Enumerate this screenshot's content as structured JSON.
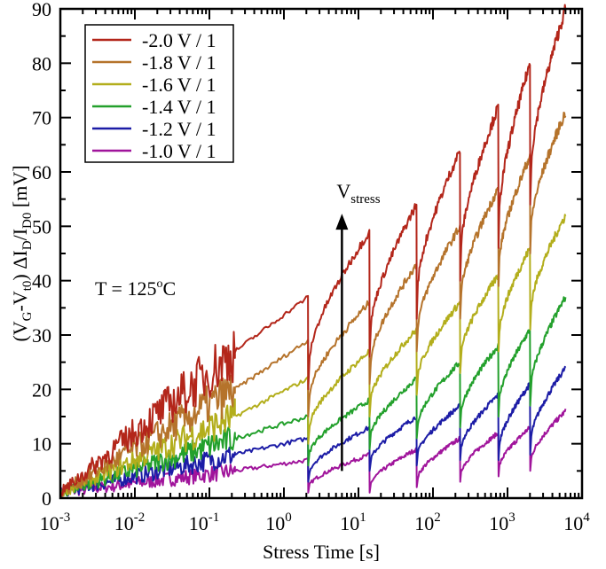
{
  "chart_data": {
    "type": "line",
    "title": "",
    "xlabel": "Stress Time [s]",
    "ylabel_parts": [
      "(V",
      "G",
      "-V",
      "t0",
      ") ΔI",
      "D",
      "/I",
      "D0",
      " [mV]"
    ],
    "xscale": "log",
    "xlim": [
      0.001,
      10000
    ],
    "ylim": [
      0,
      90
    ],
    "x_ticks": [
      {
        "base": "10",
        "exp": "-3"
      },
      {
        "base": "10",
        "exp": "-2"
      },
      {
        "base": "10",
        "exp": "-1"
      },
      {
        "base": "10",
        "exp": "0"
      },
      {
        "base": "10",
        "exp": "1"
      },
      {
        "base": "10",
        "exp": "2"
      },
      {
        "base": "10",
        "exp": "3"
      },
      {
        "base": "10",
        "exp": "4"
      }
    ],
    "y_ticks": [
      "0",
      "10",
      "20",
      "30",
      "40",
      "50",
      "60",
      "70",
      "80",
      "90"
    ],
    "legend_position": "top-left",
    "annotations": {
      "temperature": {
        "prefix": "T = 125",
        "sup": "o",
        "suffix": "C"
      },
      "arrow": {
        "main": "V",
        "sub": "stress",
        "x": 6,
        "y_from": 5,
        "y_to": 52
      }
    },
    "breakpoints_s": [
      2.1,
      14,
      60,
      230,
      750,
      2000,
      6000
    ],
    "series": [
      {
        "name": "-2.0 V / 1",
        "color": "#b3261a",
        "early": [
          1,
          27
        ],
        "mid_end": 37,
        "ends": [
          49,
          54,
          64,
          72,
          80,
          90
        ],
        "drops": [
          20,
          26,
          33,
          40,
          46,
          54
        ]
      },
      {
        "name": "-1.8 V / 1",
        "color": "#b5732b",
        "early": [
          1,
          20
        ],
        "mid_end": 29,
        "ends": [
          36,
          43,
          50,
          57,
          63,
          71
        ],
        "drops": [
          15,
          21,
          27,
          33,
          39,
          45
        ]
      },
      {
        "name": "-1.6 V / 1",
        "color": "#b3ae1c",
        "early": [
          1,
          15
        ],
        "mid_end": 22,
        "ends": [
          27,
          31,
          36,
          41,
          46,
          52
        ],
        "drops": [
          10,
          15,
          19,
          23,
          27,
          31
        ]
      },
      {
        "name": "-1.4 V / 1",
        "color": "#23a02c",
        "early": [
          1,
          11
        ],
        "mid_end": 15,
        "ends": [
          18,
          22,
          25,
          28,
          31,
          37
        ],
        "drops": [
          6,
          9,
          11,
          13,
          15,
          17
        ]
      },
      {
        "name": "-1.2 V / 1",
        "color": "#1c1ca6",
        "early": [
          1,
          8
        ],
        "mid_end": 11,
        "ends": [
          13,
          15,
          17,
          19,
          21,
          24
        ],
        "drops": [
          3,
          5,
          6,
          7,
          7,
          8
        ]
      },
      {
        "name": "-1.0 V / 1",
        "color": "#a0149b",
        "early": [
          1,
          5
        ],
        "mid_end": 7,
        "ends": [
          8,
          9,
          11,
          12,
          13,
          16
        ],
        "drops": [
          1,
          1,
          2,
          3,
          4,
          5
        ]
      }
    ]
  }
}
